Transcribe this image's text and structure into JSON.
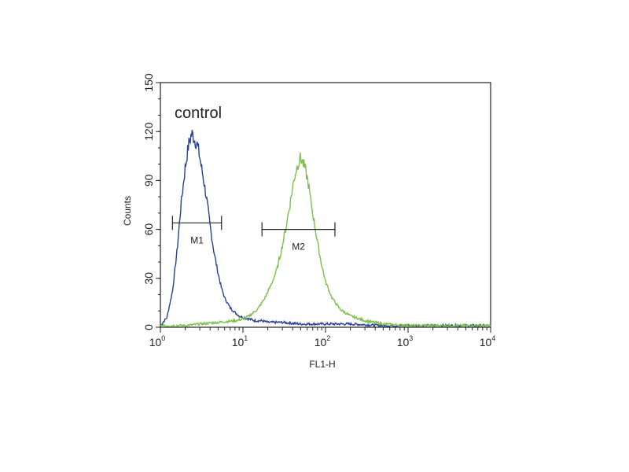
{
  "chart_data": {
    "type": "line",
    "title": "",
    "xlabel": "FL1-H",
    "ylabel": "Counts",
    "x_scale": "log",
    "xlim": [
      1,
      10000
    ],
    "ylim": [
      0,
      150
    ],
    "x_ticks": [
      {
        "base": "10",
        "exp": "0",
        "value": 1
      },
      {
        "base": "10",
        "exp": "1",
        "value": 10
      },
      {
        "base": "10",
        "exp": "2",
        "value": 100
      },
      {
        "base": "10",
        "exp": "3",
        "value": 1000
      },
      {
        "base": "10",
        "exp": "4",
        "value": 10000
      }
    ],
    "y_ticks": [
      "0",
      "30",
      "60",
      "90",
      "120",
      "150"
    ],
    "annotation": "control",
    "colors": {
      "control": "#2b3f9a",
      "sample": "#7cc04a",
      "axis": "#222222"
    },
    "series": [
      {
        "key": "control",
        "x": [
          1,
          1.2,
          1.4,
          1.6,
          1.8,
          2.0,
          2.2,
          2.4,
          2.6,
          2.8,
          3.0,
          3.3,
          3.6,
          4.0,
          4.5,
          5,
          5.5,
          6,
          7,
          8,
          9,
          10,
          12,
          14,
          17,
          20,
          30,
          50,
          100,
          200,
          500,
          1000,
          3000,
          10000
        ],
        "values": [
          1,
          6,
          22,
          48,
          78,
          98,
          112,
          119,
          115,
          112,
          104,
          92,
          80,
          62,
          45,
          33,
          24,
          18,
          12,
          9,
          7,
          6,
          5,
          4,
          4,
          3,
          3,
          2,
          2,
          2,
          1,
          1,
          1,
          1
        ]
      },
      {
        "key": "sample",
        "x": [
          1,
          2,
          3,
          5,
          8,
          10,
          12,
          15,
          18,
          22,
          26,
          30,
          34,
          38,
          42,
          46,
          50,
          54,
          58,
          62,
          66,
          70,
          80,
          90,
          100,
          120,
          150,
          200,
          300,
          500,
          1000,
          3000,
          10000
        ],
        "values": [
          1,
          1,
          2,
          3,
          4,
          5,
          7,
          11,
          17,
          26,
          36,
          50,
          64,
          79,
          92,
          100,
          104,
          100,
          95,
          88,
          78,
          70,
          52,
          38,
          28,
          18,
          11,
          7,
          4,
          2,
          1,
          1,
          1
        ]
      }
    ],
    "markers": [
      {
        "label": "M1",
        "x_start": 1.4,
        "x_end": 5.5,
        "y": 64
      },
      {
        "label": "M2",
        "x_start": 17,
        "x_end": 130,
        "y": 60
      }
    ]
  }
}
